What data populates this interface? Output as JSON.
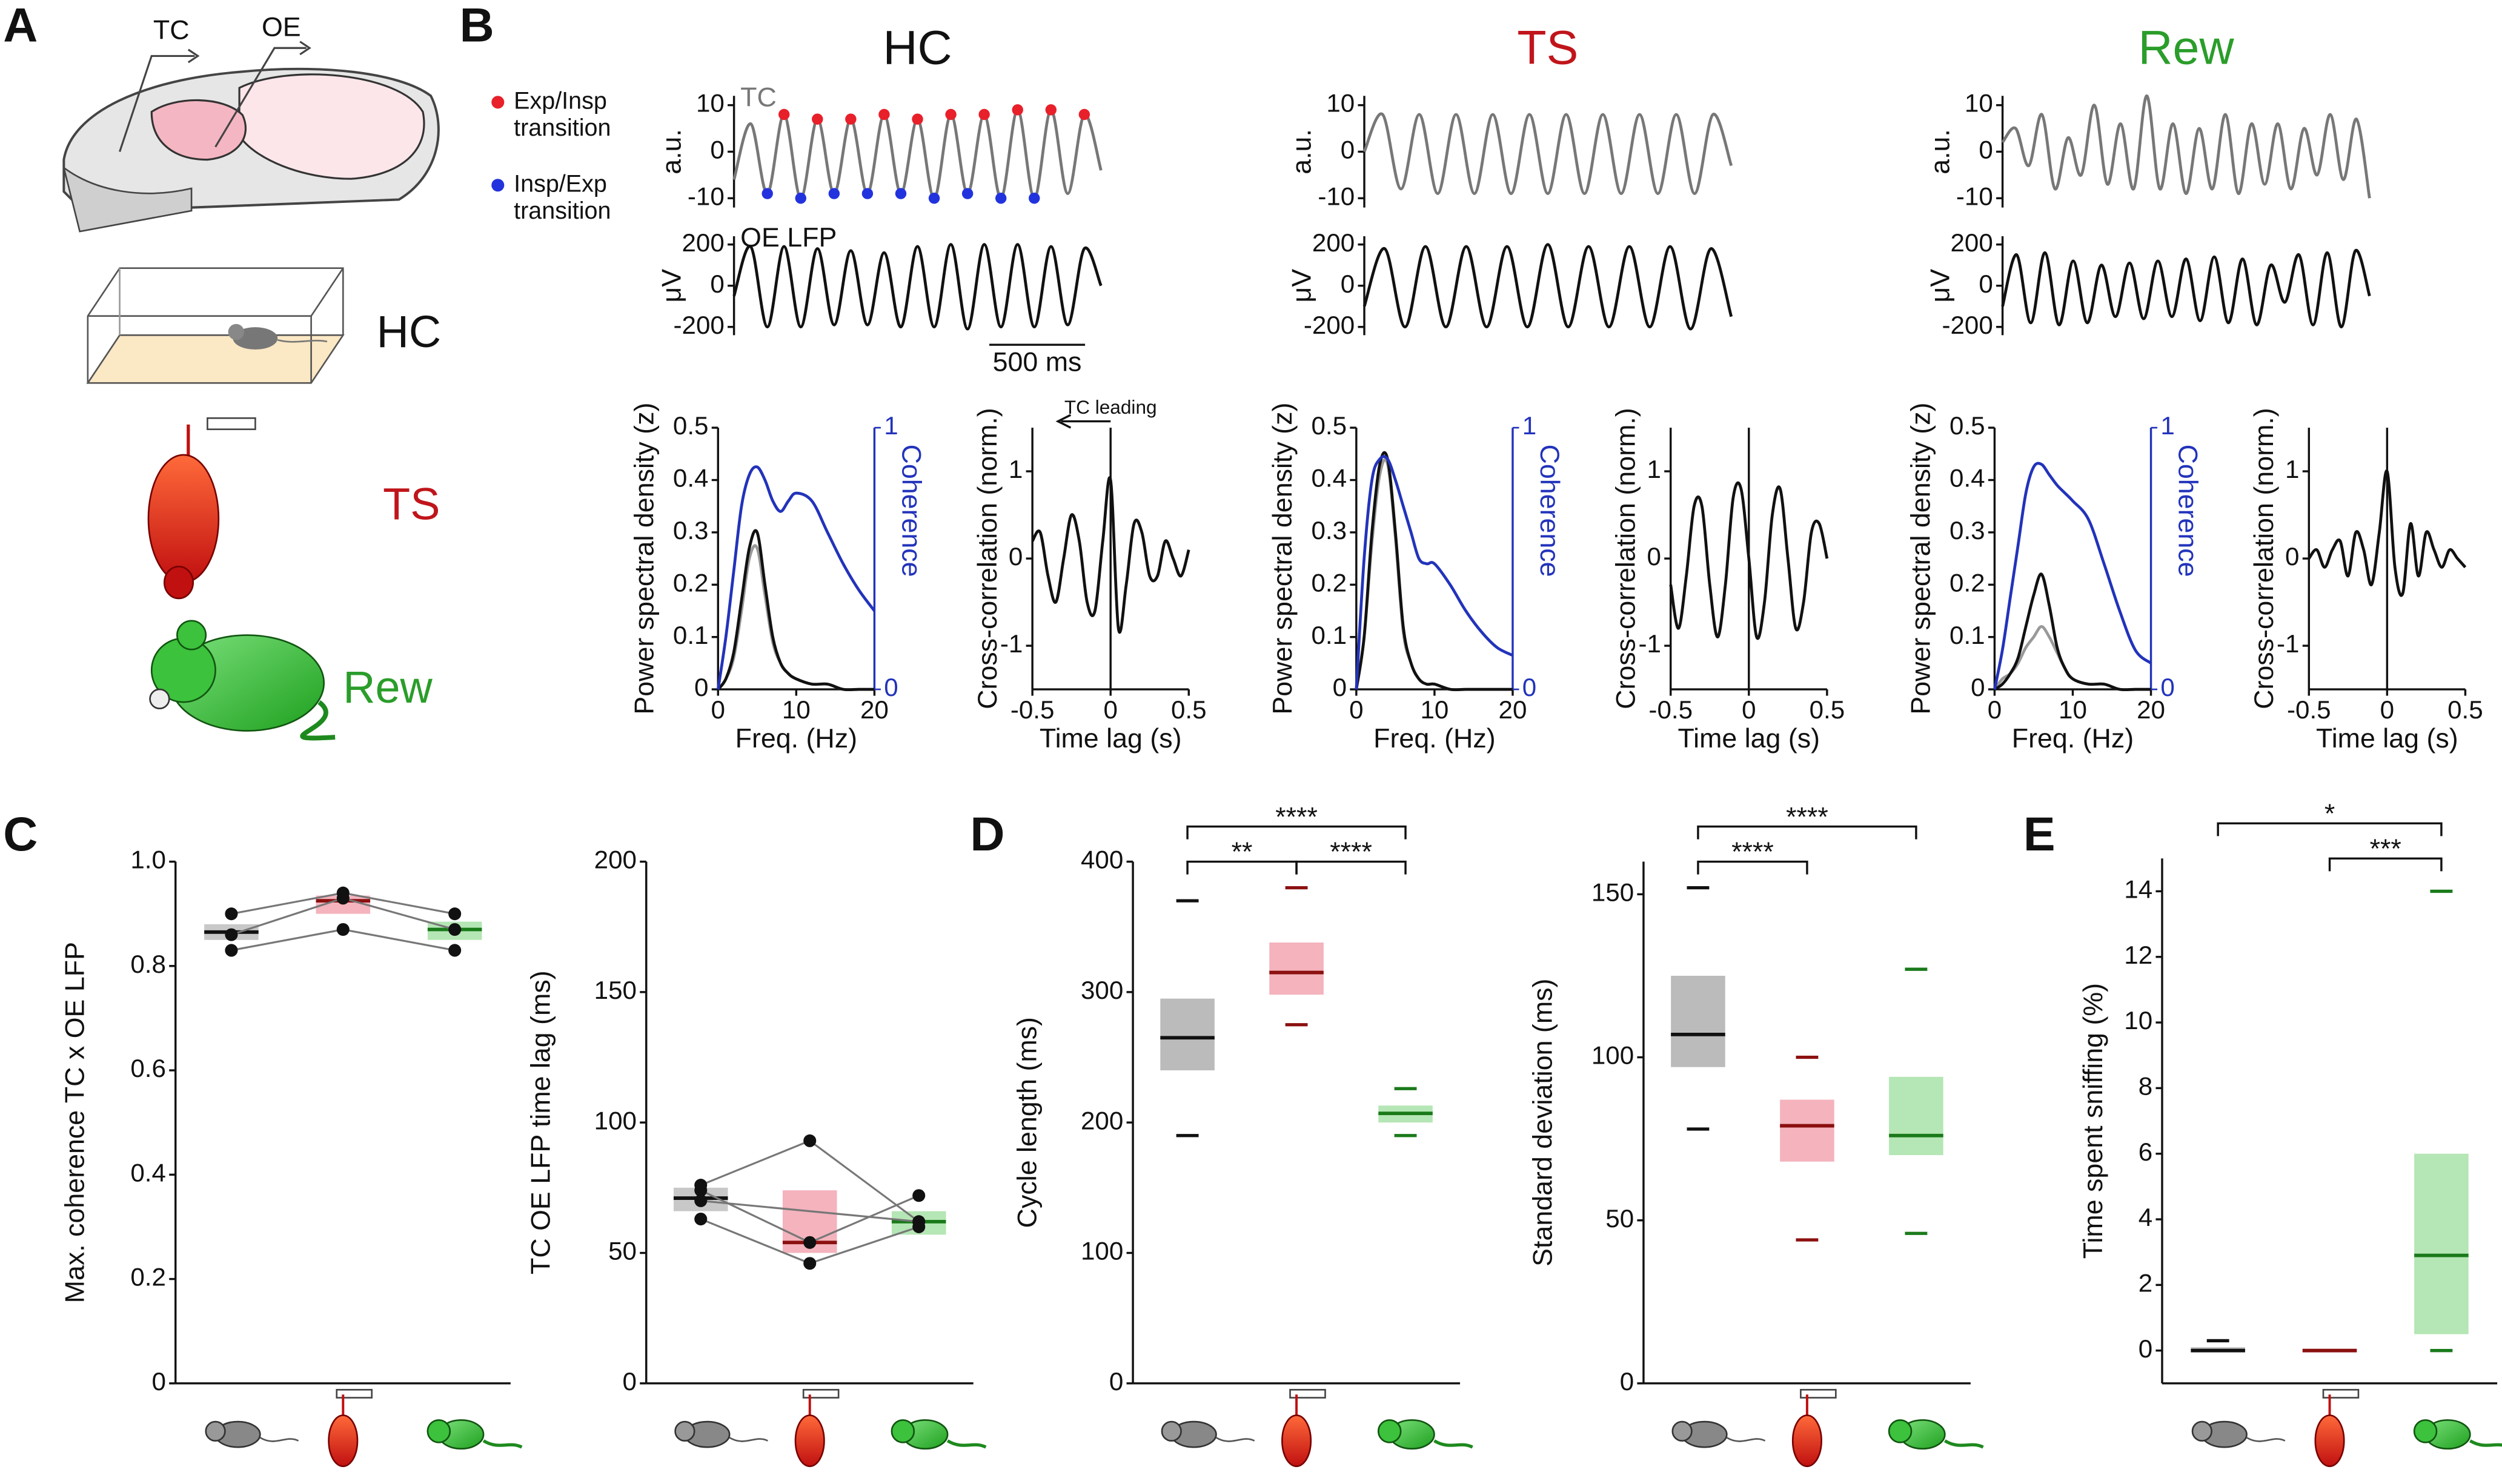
{
  "panel_labels": [
    "A",
    "B",
    "C",
    "D",
    "E"
  ],
  "schematic": {
    "electrodes": [
      "TC",
      "OE"
    ],
    "conditions": [
      "HC",
      "TS",
      "Rew"
    ]
  },
  "chart_data": [
    {
      "type": "line",
      "title": "HC",
      "title_color": "#111111",
      "ylabel": "a.u.",
      "ylim": [
        -12,
        12
      ],
      "yticks": [
        -10,
        0,
        10
      ],
      "series": [
        {
          "name": "TC",
          "color": "#777777",
          "values": [
            -6,
            6,
            -9,
            8,
            -10,
            7,
            -9,
            7,
            -9,
            8,
            -9,
            7,
            -10,
            8,
            -9,
            8,
            -10,
            9,
            -10,
            9,
            -9,
            8,
            -4
          ]
        },
        {
          "type": "scatter",
          "name": "Exp/Insp transition",
          "color": "#e8202a",
          "x": [
            3,
            5,
            7,
            9,
            11,
            13,
            15,
            17,
            19,
            21
          ],
          "values": [
            8,
            7,
            7,
            8,
            7,
            8,
            8,
            9,
            9,
            8
          ]
        },
        {
          "type": "scatter",
          "name": "Insp/Exp transition",
          "color": "#2233dd",
          "x": [
            2,
            4,
            6,
            8,
            10,
            12,
            14,
            16,
            18
          ],
          "values": [
            -9,
            -10,
            -9,
            -9,
            -9,
            -10,
            -9,
            -10,
            -10
          ]
        }
      ]
    },
    {
      "type": "line",
      "ylabel": "μV",
      "ylim": [
        -240,
        240
      ],
      "yticks": [
        -200,
        0,
        200
      ],
      "annotation": "500 ms",
      "series": [
        {
          "name": "OE LFP",
          "color": "#111111",
          "values": [
            -50,
            190,
            -200,
            190,
            -200,
            180,
            -190,
            170,
            -190,
            160,
            -200,
            190,
            -200,
            200,
            -210,
            200,
            -200,
            200,
            -200,
            190,
            -190,
            180,
            0
          ]
        }
      ]
    },
    {
      "type": "line",
      "xlabel": "Freq. (Hz)",
      "ylabel": "Power spectral density (z)",
      "y2label": "Coherence",
      "y2color": "#2233bb",
      "xlim": [
        0,
        20
      ],
      "xticks": [
        0,
        10,
        20
      ],
      "ylim": [
        0,
        0.5
      ],
      "yticks": [
        0,
        0.1,
        0.2,
        0.3,
        0.4,
        0.5
      ],
      "y2lim": [
        0,
        1
      ],
      "y2ticks": [
        0,
        1
      ],
      "x": [
        0,
        1,
        2,
        3,
        4,
        5,
        6,
        7,
        8,
        9,
        10,
        12,
        14,
        16,
        18,
        20
      ],
      "series": [
        {
          "color": "#999999",
          "values": [
            0,
            0.02,
            0.06,
            0.15,
            0.25,
            0.27,
            0.18,
            0.09,
            0.05,
            0.03,
            0.02,
            0.01,
            0.01,
            0,
            0,
            0
          ]
        },
        {
          "color": "#111111",
          "values": [
            0,
            0.02,
            0.07,
            0.17,
            0.27,
            0.3,
            0.2,
            0.1,
            0.05,
            0.03,
            0.02,
            0.01,
            0.01,
            0,
            0,
            0
          ]
        },
        {
          "axis": "y2",
          "color": "#2233bb",
          "values": [
            0,
            0.2,
            0.45,
            0.7,
            0.82,
            0.85,
            0.8,
            0.72,
            0.68,
            0.72,
            0.75,
            0.72,
            0.6,
            0.48,
            0.38,
            0.3
          ]
        }
      ]
    },
    {
      "type": "line",
      "xlabel": "Time lag (s)",
      "ylabel": "Cross-correlation (norm.)",
      "annotation": "TC leading",
      "zero_line": true,
      "xlim": [
        -0.5,
        0.5
      ],
      "xticks": [
        -0.5,
        0,
        0.5
      ],
      "ylim": [
        -1.5,
        1.5
      ],
      "yticks": [
        -1,
        0,
        1
      ],
      "x": [
        -0.5,
        -0.45,
        -0.4,
        -0.35,
        -0.3,
        -0.25,
        -0.2,
        -0.15,
        -0.1,
        -0.05,
        0,
        0.05,
        0.1,
        0.15,
        0.2,
        0.25,
        0.3,
        0.35,
        0.4,
        0.45,
        0.5
      ],
      "series": [
        {
          "color": "#111111",
          "values": [
            0.2,
            0.3,
            -0.2,
            -0.5,
            0,
            0.5,
            0.2,
            -0.5,
            -0.6,
            0.2,
            0.9,
            -0.8,
            -0.3,
            0.4,
            0.3,
            -0.2,
            -0.2,
            0.2,
            0,
            -0.2,
            0.1
          ]
        }
      ]
    },
    {
      "type": "line",
      "title": "TS",
      "title_color": "#c0151b",
      "ylabel": "a.u.",
      "ylim": [
        -12,
        12
      ],
      "yticks": [
        -10,
        0,
        10
      ],
      "series": [
        {
          "color": "#777777",
          "values": [
            0,
            8,
            -8,
            8,
            -9,
            8,
            -9,
            8,
            -9,
            8,
            -9,
            8,
            -9,
            8,
            -9,
            8,
            -9,
            8,
            -9,
            8,
            -3
          ]
        }
      ]
    },
    {
      "type": "line",
      "ylabel": "μV",
      "ylim": [
        -240,
        240
      ],
      "yticks": [
        -200,
        0,
        200
      ],
      "series": [
        {
          "color": "#111111",
          "values": [
            -100,
            180,
            -200,
            190,
            -200,
            190,
            -200,
            190,
            -200,
            200,
            -200,
            190,
            -200,
            190,
            -200,
            190,
            -210,
            180,
            -150
          ]
        }
      ]
    },
    {
      "type": "line",
      "xlabel": "Freq. (Hz)",
      "ylabel": "Power spectral density (z)",
      "y2label": "Coherence",
      "y2color": "#2233bb",
      "xlim": [
        0,
        20
      ],
      "xticks": [
        0,
        10,
        20
      ],
      "ylim": [
        0,
        0.5
      ],
      "yticks": [
        0,
        0.1,
        0.2,
        0.3,
        0.4,
        0.5
      ],
      "y2lim": [
        0,
        1
      ],
      "y2ticks": [
        0,
        1
      ],
      "x": [
        0,
        1,
        2,
        3,
        4,
        5,
        6,
        7,
        8,
        9,
        10,
        12,
        14,
        16,
        18,
        20
      ],
      "series": [
        {
          "color": "#999999",
          "values": [
            0,
            0.1,
            0.28,
            0.41,
            0.43,
            0.29,
            0.11,
            0.05,
            0.02,
            0.01,
            0.01,
            0,
            0,
            0,
            0,
            0
          ]
        },
        {
          "color": "#111111",
          "values": [
            0,
            0.1,
            0.3,
            0.43,
            0.44,
            0.3,
            0.12,
            0.05,
            0.02,
            0.01,
            0.01,
            0,
            0,
            0,
            0,
            0
          ]
        },
        {
          "axis": "y2",
          "color": "#2233bb",
          "values": [
            0,
            0.5,
            0.8,
            0.88,
            0.88,
            0.8,
            0.7,
            0.6,
            0.5,
            0.48,
            0.48,
            0.4,
            0.3,
            0.22,
            0.16,
            0.13
          ]
        }
      ]
    },
    {
      "type": "line",
      "xlabel": "Time lag (s)",
      "ylabel": "Cross-correlation (norm.)",
      "zero_line": true,
      "xlim": [
        -0.5,
        0.5
      ],
      "xticks": [
        -0.5,
        0,
        0.5
      ],
      "ylim": [
        -1.5,
        1.5
      ],
      "yticks": [
        -1,
        0,
        1
      ],
      "x": [
        -0.5,
        -0.45,
        -0.4,
        -0.35,
        -0.3,
        -0.25,
        -0.2,
        -0.15,
        -0.1,
        -0.05,
        0,
        0.05,
        0.1,
        0.15,
        0.2,
        0.25,
        0.3,
        0.35,
        0.4,
        0.45,
        0.5
      ],
      "series": [
        {
          "color": "#111111",
          "values": [
            -0.3,
            -0.8,
            -0.2,
            0.6,
            0.6,
            -0.3,
            -0.9,
            -0.3,
            0.7,
            0.8,
            0,
            -0.9,
            -0.5,
            0.5,
            0.8,
            0,
            -0.8,
            -0.5,
            0.3,
            0.4,
            0
          ]
        }
      ]
    },
    {
      "type": "line",
      "title": "Rew",
      "title_color": "#2a9d2a",
      "ylabel": "a.u.",
      "ylim": [
        -12,
        12
      ],
      "yticks": [
        -10,
        0,
        10
      ],
      "series": [
        {
          "color": "#777777",
          "values": [
            2,
            5,
            -3,
            8,
            -8,
            3,
            -5,
            10,
            -7,
            6,
            -8,
            12,
            -8,
            6,
            -9,
            5,
            -8,
            8,
            -9,
            6,
            -7,
            6,
            -8,
            5,
            -5,
            8,
            -6,
            7,
            -10
          ]
        }
      ]
    },
    {
      "type": "line",
      "ylabel": "μV",
      "ylim": [
        -240,
        240
      ],
      "yticks": [
        -200,
        0,
        200
      ],
      "series": [
        {
          "color": "#111111",
          "values": [
            -100,
            150,
            -180,
            160,
            -190,
            120,
            -180,
            100,
            -150,
            110,
            -160,
            120,
            -150,
            130,
            -170,
            140,
            -180,
            130,
            -190,
            100,
            -80,
            150,
            -190,
            160,
            -200,
            170,
            -50
          ]
        }
      ]
    },
    {
      "type": "line",
      "xlabel": "Freq. (Hz)",
      "ylabel": "Power spectral density (z)",
      "y2label": "Coherence",
      "y2color": "#2233bb",
      "xlim": [
        0,
        20
      ],
      "xticks": [
        0,
        10,
        20
      ],
      "ylim": [
        0,
        0.5
      ],
      "yticks": [
        0,
        0.1,
        0.2,
        0.3,
        0.4,
        0.5
      ],
      "y2lim": [
        0,
        1
      ],
      "y2ticks": [
        0,
        1
      ],
      "x": [
        0,
        1,
        2,
        3,
        4,
        5,
        6,
        7,
        8,
        9,
        10,
        12,
        14,
        16,
        18,
        20
      ],
      "series": [
        {
          "color": "#999999",
          "values": [
            0,
            0.02,
            0.03,
            0.05,
            0.08,
            0.1,
            0.12,
            0.1,
            0.07,
            0.04,
            0.02,
            0.01,
            0.01,
            0,
            0,
            0
          ]
        },
        {
          "color": "#111111",
          "values": [
            0,
            0.01,
            0.03,
            0.06,
            0.12,
            0.18,
            0.22,
            0.16,
            0.08,
            0.04,
            0.02,
            0.01,
            0.01,
            0,
            0,
            0
          ]
        },
        {
          "axis": "y2",
          "color": "#2233bb",
          "values": [
            0,
            0.15,
            0.35,
            0.55,
            0.75,
            0.85,
            0.86,
            0.82,
            0.78,
            0.75,
            0.72,
            0.65,
            0.48,
            0.3,
            0.15,
            0.1
          ]
        }
      ]
    },
    {
      "type": "line",
      "xlabel": "Time lag (s)",
      "ylabel": "Cross-correlation (norm.)",
      "zero_line": true,
      "xlim": [
        -0.5,
        0.5
      ],
      "xticks": [
        -0.5,
        0,
        0.5
      ],
      "ylim": [
        -1.5,
        1.5
      ],
      "yticks": [
        -1,
        0,
        1
      ],
      "x": [
        -0.5,
        -0.45,
        -0.4,
        -0.35,
        -0.3,
        -0.25,
        -0.2,
        -0.15,
        -0.1,
        -0.05,
        0,
        0.05,
        0.1,
        0.15,
        0.2,
        0.25,
        0.3,
        0.35,
        0.4,
        0.45,
        0.5
      ],
      "series": [
        {
          "color": "#111111",
          "values": [
            0,
            0.1,
            -0.1,
            0.1,
            0.2,
            -0.2,
            0.3,
            0.1,
            -0.3,
            0.3,
            1,
            -0.1,
            -0.4,
            0.4,
            -0.2,
            0.3,
            0.1,
            -0.1,
            0.1,
            0,
            -0.1
          ]
        }
      ]
    },
    {
      "type": "box",
      "ylabel": "Max. coherence TC x OE LFP",
      "ylim": [
        0,
        1
      ],
      "yticks": [
        0,
        0.2,
        0.4,
        0.6,
        0.8,
        {
          "value": 1,
          "label": "1.0"
        }
      ],
      "categories": [
        null,
        null,
        null
      ],
      "colors": [
        "#c8c8c8",
        "#f4b3bd",
        "#b5e6b5"
      ],
      "median_colors": [
        "#111111",
        "#8b1010",
        "#1a7a1a"
      ],
      "median": [
        0.865,
        0.925,
        0.87
      ],
      "q1": [
        0.85,
        0.9,
        0.85
      ],
      "q3": [
        0.88,
        0.935,
        0.885
      ],
      "points": [
        [
          0.9,
          0.94,
          0.9
        ],
        [
          0.86,
          0.93,
          0.87
        ],
        [
          0.83,
          0.87,
          0.83
        ]
      ]
    },
    {
      "type": "box",
      "ylabel": "TC OE LFP time lag (ms)",
      "ylim": [
        0,
        200
      ],
      "yticks": [
        0,
        50,
        100,
        150,
        200
      ],
      "categories": [
        null,
        null,
        null
      ],
      "colors": [
        "#c8c8c8",
        "#f4b3bd",
        "#b5e6b5"
      ],
      "median_colors": [
        "#111111",
        "#8b1010",
        "#1a7a1a"
      ],
      "median": [
        71,
        54,
        62
      ],
      "q1": [
        66,
        50,
        57
      ],
      "q3": [
        75,
        74,
        66
      ],
      "points": [
        [
          76,
          93,
          62
        ],
        [
          74,
          54,
          72
        ],
        [
          63,
          46,
          60
        ],
        [
          70,
          null,
          62
        ]
      ]
    },
    {
      "type": "box",
      "ylabel": "Cycle length (ms)",
      "ylim": [
        0,
        400
      ],
      "yticks": [
        0,
        100,
        200,
        300,
        400
      ],
      "categories": [
        null,
        null,
        null
      ],
      "colors": [
        "#bbbbbb",
        "#f4b3bd",
        "#b5e6b5"
      ],
      "median_colors": [
        "#111111",
        "#8b1010",
        "#1a7a1a"
      ],
      "median": [
        265,
        315,
        207
      ],
      "q1": [
        240,
        298,
        200
      ],
      "q3": [
        295,
        338,
        213
      ],
      "max": [
        370,
        380,
        226
      ],
      "min": [
        190,
        275,
        190
      ],
      "significance": [
        {
          "label": "****",
          "between": [
            0,
            2
          ]
        },
        {
          "label": "**",
          "between": [
            0,
            1
          ]
        },
        {
          "label": "****",
          "between": [
            1,
            2
          ]
        }
      ]
    },
    {
      "type": "box",
      "ylabel": "Standard deviation (ms)",
      "ylim": [
        0,
        160
      ],
      "yticks": [
        0,
        50,
        100,
        150
      ],
      "categories": [
        null,
        null,
        null
      ],
      "colors": [
        "#bbbbbb",
        "#f4b3bd",
        "#b5e6b5"
      ],
      "median_colors": [
        "#111111",
        "#8b1010",
        "#1a7a1a"
      ],
      "median": [
        107,
        79,
        76
      ],
      "q1": [
        97,
        68,
        70
      ],
      "q3": [
        125,
        87,
        94
      ],
      "max": [
        152,
        100,
        127
      ],
      "min": [
        78,
        44,
        46
      ],
      "significance": [
        {
          "label": "****",
          "between": [
            0,
            2
          ]
        },
        {
          "label": "****",
          "between": [
            0,
            1
          ]
        }
      ]
    },
    {
      "type": "box",
      "ylabel": "Time spent sniffing (%)",
      "ylim": [
        -1,
        15
      ],
      "yticks": [
        0,
        2,
        4,
        6,
        8,
        10,
        12,
        14
      ],
      "categories": [
        null,
        null,
        null
      ],
      "colors": [
        "#bbbbbb",
        "#f4b3bd",
        "#b5e6b5"
      ],
      "median_colors": [
        "#111111",
        "#8b1010",
        "#1a7a1a"
      ],
      "median": [
        0,
        0,
        2.9
      ],
      "q1": [
        0,
        0,
        0.5
      ],
      "q3": [
        0.1,
        0,
        6
      ],
      "max": [
        0.3,
        0,
        14
      ],
      "min": [
        0,
        0,
        0
      ],
      "significance": [
        {
          "label": "*",
          "between": [
            0,
            2
          ]
        },
        {
          "label": "***",
          "between": [
            1,
            2
          ]
        }
      ]
    }
  ]
}
